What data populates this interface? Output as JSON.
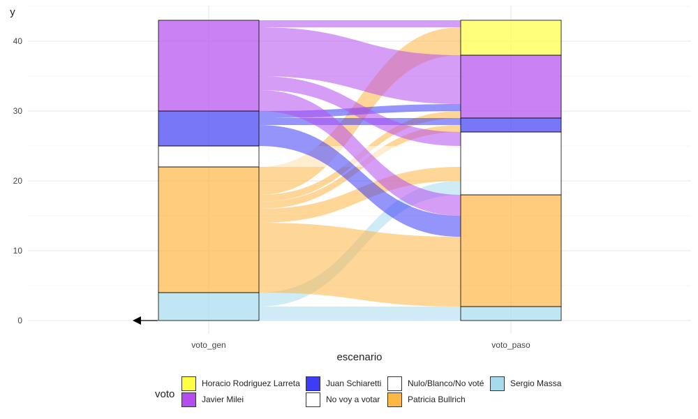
{
  "chart_data": {
    "type": "alluvial",
    "title": "",
    "xlabel": "escenario",
    "ylabel": "y",
    "ylim": [
      0,
      43
    ],
    "yticks": [
      0,
      10,
      20,
      30,
      40
    ],
    "axes": [
      "voto_gen",
      "voto_paso"
    ],
    "legend_title": "voto",
    "categories": [
      {
        "name": "Horacio Rodriguez Larreta",
        "color": "#ffff44"
      },
      {
        "name": "Javier Milei",
        "color": "#b44cf0"
      },
      {
        "name": "Juan Schiaretti",
        "color": "#3d3df5"
      },
      {
        "name": "No voy a votar",
        "color": "#ffffff"
      },
      {
        "name": "Nulo/Blanco/No voté",
        "color": "#ffffff"
      },
      {
        "name": "Patricia Bullrich",
        "color": "#fdb744"
      },
      {
        "name": "Sergio Massa",
        "color": "#a6dbee"
      }
    ],
    "stacks": {
      "voto_gen": [
        {
          "category": "Sergio Massa",
          "value": 4
        },
        {
          "category": "Patricia Bullrich",
          "value": 18
        },
        {
          "category": "No voy a votar",
          "value": 3
        },
        {
          "category": "Juan Schiaretti",
          "value": 5
        },
        {
          "category": "Javier Milei",
          "value": 13
        }
      ],
      "voto_paso": [
        {
          "category": "Sergio Massa",
          "value": 2
        },
        {
          "category": "Patricia Bullrich",
          "value": 16
        },
        {
          "category": "Nulo/Blanco/No voté",
          "value": 9
        },
        {
          "category": "Juan Schiaretti",
          "value": 2
        },
        {
          "category": "Javier Milei",
          "value": 9
        },
        {
          "category": "Horacio Rodriguez Larreta",
          "value": 5
        }
      ]
    },
    "flows": [
      {
        "from": "Sergio Massa",
        "to": "Sergio Massa",
        "value": 2
      },
      {
        "from": "Sergio Massa",
        "to": "Nulo/Blanco/No voté",
        "value": 2
      },
      {
        "from": "Patricia Bullrich",
        "to": "Patricia Bullrich",
        "value": 10
      },
      {
        "from": "Patricia Bullrich",
        "to": "Nulo/Blanco/No voté",
        "value": 2
      },
      {
        "from": "Patricia Bullrich",
        "to": "Javier Milei",
        "value": 1
      },
      {
        "from": "Patricia Bullrich",
        "to": "Juan Schiaretti",
        "value": 1
      },
      {
        "from": "Patricia Bullrich",
        "to": "Horacio Rodriguez Larreta",
        "value": 4
      },
      {
        "from": "No voy a votar",
        "to": "Nulo/Blanco/No voté",
        "value": 3
      },
      {
        "from": "Juan Schiaretti",
        "to": "Patricia Bullrich",
        "value": 3
      },
      {
        "from": "Juan Schiaretti",
        "to": "Javier Milei",
        "value": 1
      },
      {
        "from": "Juan Schiaretti",
        "to": "Juan Schiaretti",
        "value": 1
      },
      {
        "from": "Javier Milei",
        "to": "Patricia Bullrich",
        "value": 3
      },
      {
        "from": "Javier Milei",
        "to": "Nulo/Blanco/No voté",
        "value": 2
      },
      {
        "from": "Javier Milei",
        "to": "Javier Milei",
        "value": 7
      },
      {
        "from": "Javier Milei",
        "to": "Horacio Rodriguez Larreta",
        "value": 1
      }
    ]
  }
}
